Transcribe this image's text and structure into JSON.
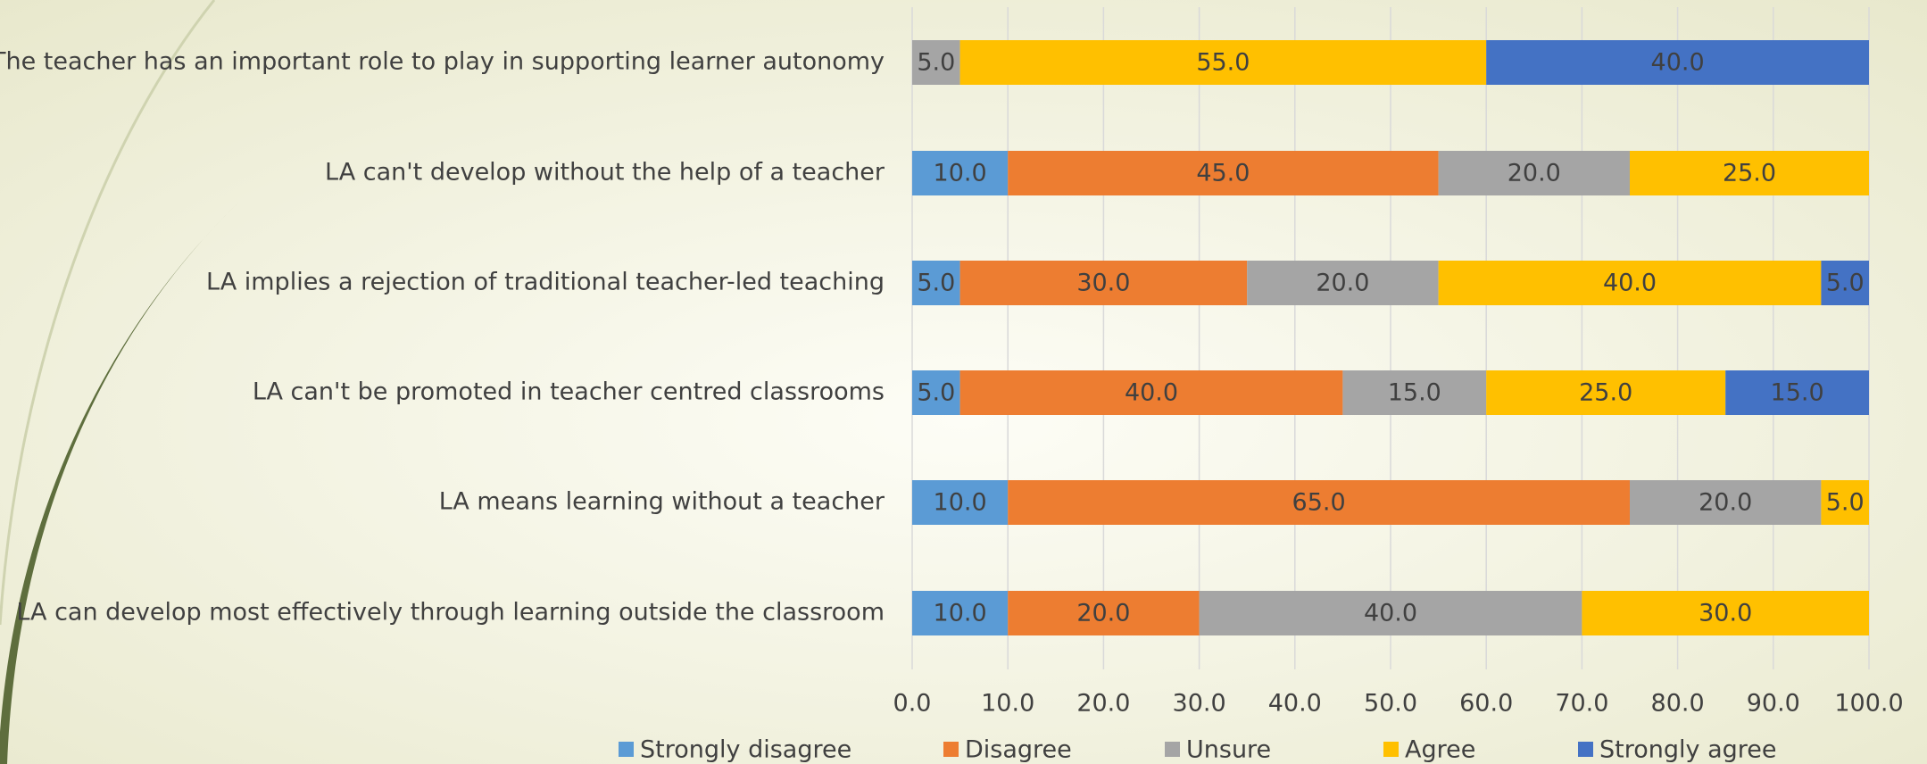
{
  "chart_data": {
    "type": "stacked-bar-horizontal",
    "categories": [
      "The  teacher has an important role  to play in supporting learner autonomy",
      "LA can't develop without the help of a teacher",
      "LA implies a rejection of traditional teacher-led teaching",
      "LA can't be promoted in teacher centred classrooms",
      "LA means learning without a teacher",
      "LA can develop most effectively through learning outside  the classroom"
    ],
    "series": [
      {
        "name": "Strongly disagree",
        "color": "#5b9bd5",
        "values": [
          null,
          10,
          5,
          5,
          10,
          10
        ],
        "value_labels": [
          null,
          "10.0",
          "5.0",
          "5.0",
          "10.0",
          "10.0"
        ]
      },
      {
        "name": "Disagree",
        "color": "#ed7d31",
        "values": [
          null,
          45,
          30,
          40,
          65,
          20
        ],
        "value_labels": [
          null,
          "45.0",
          "30.0",
          "40.0",
          "65.0",
          "20.0"
        ]
      },
      {
        "name": "Unsure",
        "color": "#a5a5a5",
        "values": [
          5,
          20,
          20,
          15,
          20,
          40
        ],
        "value_labels": [
          "5.0",
          "20.0",
          "20.0",
          "15.0",
          "20.0",
          "40.0"
        ]
      },
      {
        "name": "Agree",
        "color": "#ffc000",
        "values": [
          55,
          25,
          40,
          25,
          5,
          30
        ],
        "value_labels": [
          "55.0",
          "25.0",
          "40.0",
          "25.0",
          "5.0",
          "30.0"
        ]
      },
      {
        "name": "Strongly agree",
        "color": "#4472c4",
        "values": [
          40,
          null,
          5,
          15,
          null,
          null
        ],
        "value_labels": [
          "40.0",
          null,
          "5.0",
          "15.0",
          null,
          null
        ]
      }
    ],
    "xlim": [
      0,
      100
    ],
    "xticks": [
      {
        "value": 0,
        "label": "0.0"
      },
      {
        "value": 10,
        "label": "10.0"
      },
      {
        "value": 20,
        "label": "20.0"
      },
      {
        "value": 30,
        "label": "30.0"
      },
      {
        "value": 40,
        "label": "40.0"
      },
      {
        "value": 50,
        "label": "50.0"
      },
      {
        "value": 60,
        "label": "60.0"
      },
      {
        "value": 70,
        "label": "70.0"
      },
      {
        "value": 80,
        "label": "80.0"
      },
      {
        "value": 90,
        "label": "90.0"
      },
      {
        "value": 100,
        "label": "100.0"
      }
    ],
    "grid": true,
    "legend": "bottom"
  }
}
